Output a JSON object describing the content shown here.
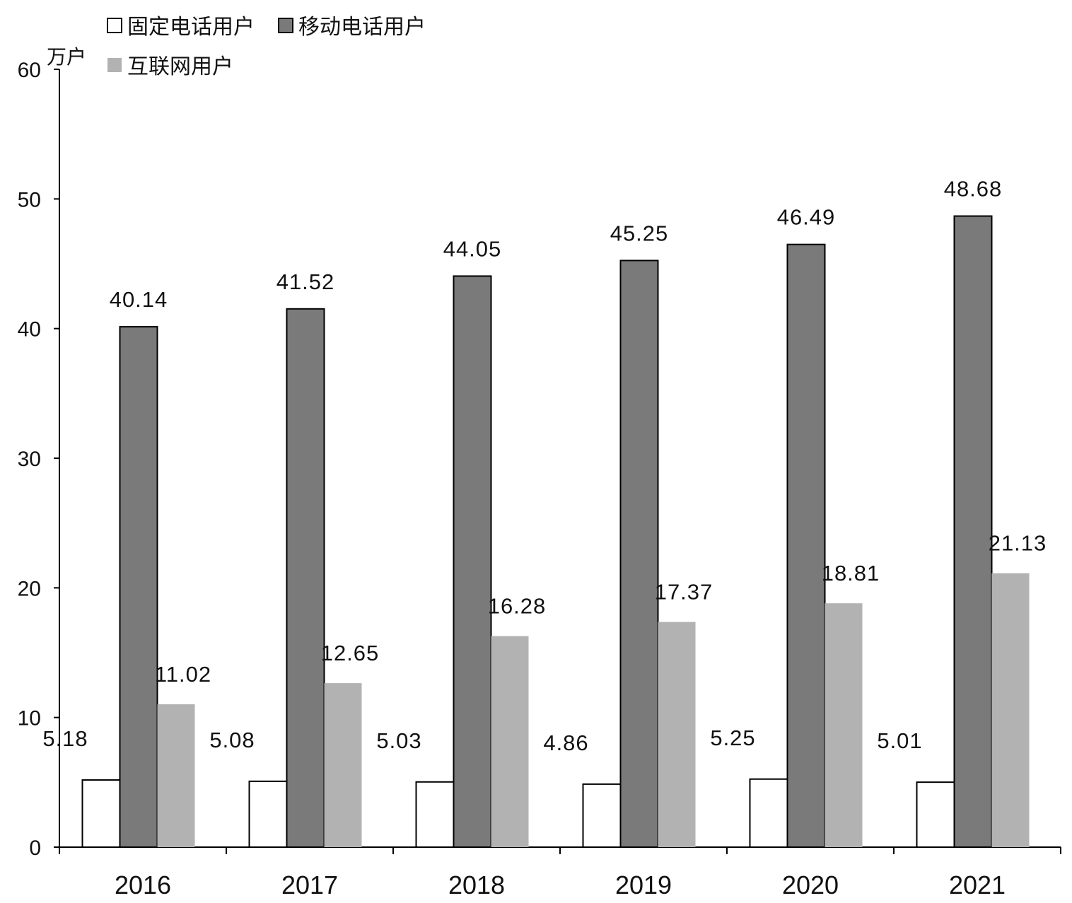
{
  "chart_data": {
    "type": "bar",
    "ylabel": "万户",
    "ylim": [
      0,
      60
    ],
    "yticks": [
      0,
      10,
      20,
      30,
      40,
      50,
      60
    ],
    "categories": [
      "2016",
      "2017",
      "2018",
      "2019",
      "2020",
      "2021"
    ],
    "series": [
      {
        "name": "固定电话用户",
        "color": "#ffffff",
        "values": [
          5.18,
          5.08,
          5.03,
          4.86,
          5.25,
          5.01
        ],
        "labels": [
          "5.18",
          "5.08",
          "5.03",
          "4.86",
          "5.25",
          "5.01"
        ]
      },
      {
        "name": "移动电话用户",
        "color": "#7a7a7a",
        "values": [
          40.14,
          41.52,
          44.05,
          45.25,
          46.49,
          48.68
        ],
        "labels": [
          "40.14",
          "41.52",
          "44.05",
          "45.25",
          "46.49",
          "48.68"
        ]
      },
      {
        "name": "互联网用户",
        "color": "#b2b2b2",
        "values": [
          11.02,
          12.65,
          16.28,
          17.37,
          18.81,
          21.13
        ],
        "labels": [
          "11.02",
          "12.65",
          "16.28",
          "17.37",
          "18.81",
          "21.13"
        ]
      }
    ],
    "grid": false,
    "legend": "top-left"
  }
}
